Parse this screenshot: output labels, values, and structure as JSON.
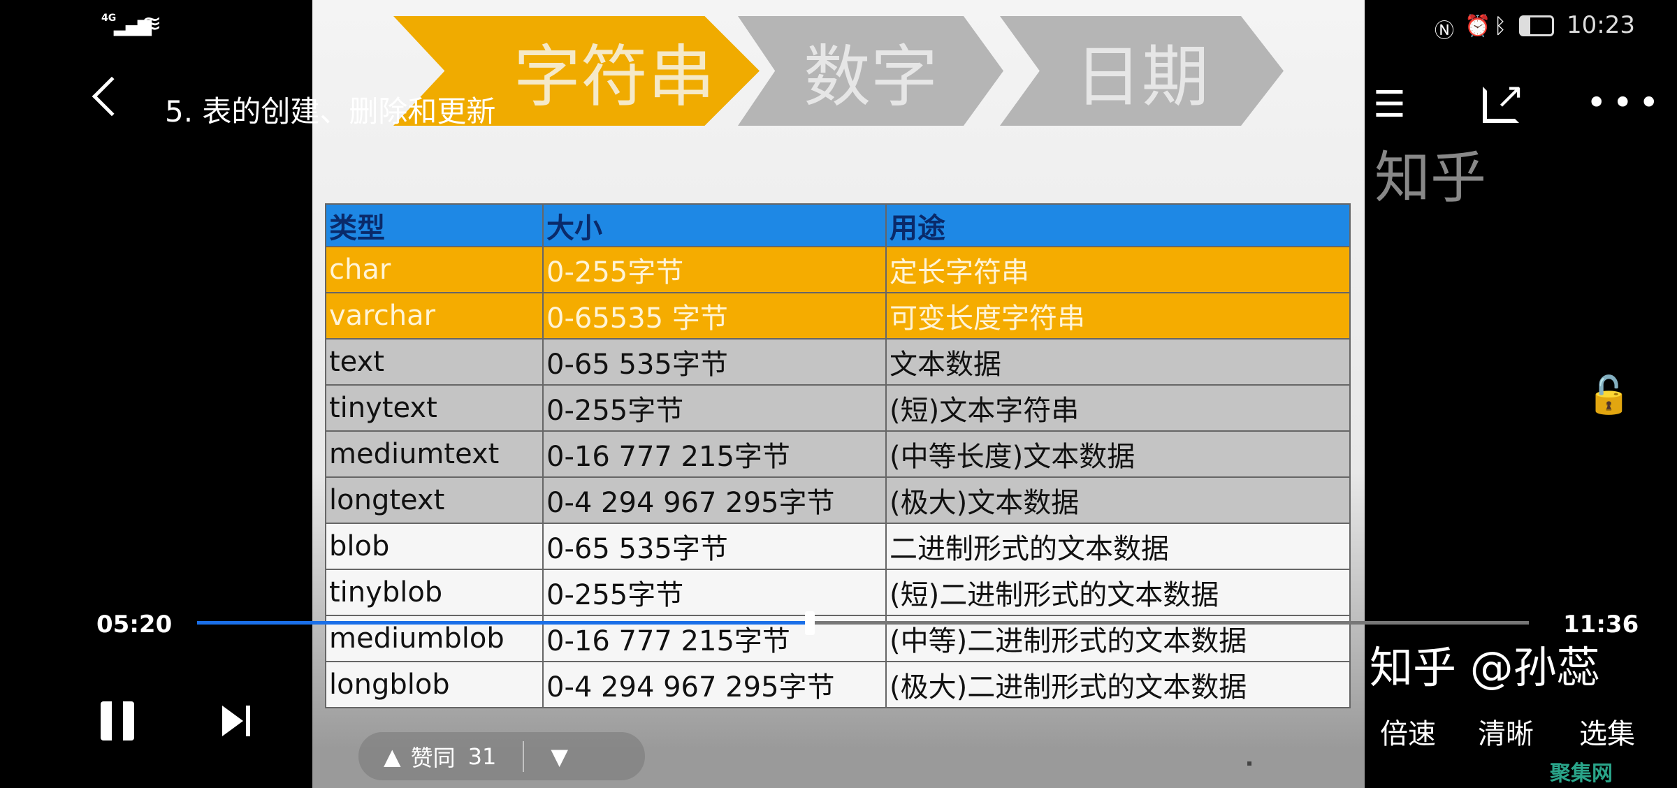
{
  "status_bar": {
    "network": "4G",
    "time": "10:23",
    "battery_level": 0.3
  },
  "header": {
    "title": "5. 表的创建、删除和更新"
  },
  "video": {
    "banner": [
      "字符串",
      "数字",
      "日期"
    ],
    "watermark_top": "知乎",
    "table": {
      "headers": [
        "类型",
        "大小",
        "用途"
      ],
      "rows": [
        {
          "style": "orange",
          "cells": [
            "char",
            "0-255字节",
            "定长字符串"
          ]
        },
        {
          "style": "orange",
          "cells": [
            "varchar",
            "0-65535 字节",
            "可变长度字符串"
          ]
        },
        {
          "style": "gray",
          "cells": [
            "text",
            "0-65 535字节",
            "文本数据"
          ]
        },
        {
          "style": "gray",
          "cells": [
            "tinytext",
            "0-255字节",
            "(短)文本字符串"
          ]
        },
        {
          "style": "gray",
          "cells": [
            "mediumtext",
            "0-16 777 215字节",
            "(中等长度)文本数据"
          ]
        },
        {
          "style": "gray",
          "cells": [
            "longtext",
            "0-4 294 967 295字节",
            "(极大)文本数据"
          ]
        },
        {
          "style": "white",
          "cells": [
            "blob",
            "0-65 535字节",
            "二进制形式的文本数据"
          ]
        },
        {
          "style": "white",
          "cells": [
            "tinyblob",
            "0-255字节",
            "(短)二进制形式的文本数据"
          ]
        },
        {
          "style": "white",
          "cells": [
            "mediumblob",
            "0-16 777 215字节",
            "(中等)二进制形式的文本数据"
          ]
        },
        {
          "style": "white",
          "cells": [
            "longblob",
            "0-4 294 967 295字节",
            "(极大)二进制形式的文本数据"
          ]
        }
      ]
    },
    "watermark_bottom": "知乎 @孙蕊"
  },
  "player": {
    "current_time": "05:20",
    "total_time": "11:36",
    "progress": 0.46,
    "like_label": "赞同",
    "like_count": "31",
    "speed_label": "倍速",
    "quality_label": "清晰",
    "episodes_label": "选集",
    "accent": "#1a6fe8"
  },
  "site_watermark": "聚集网"
}
